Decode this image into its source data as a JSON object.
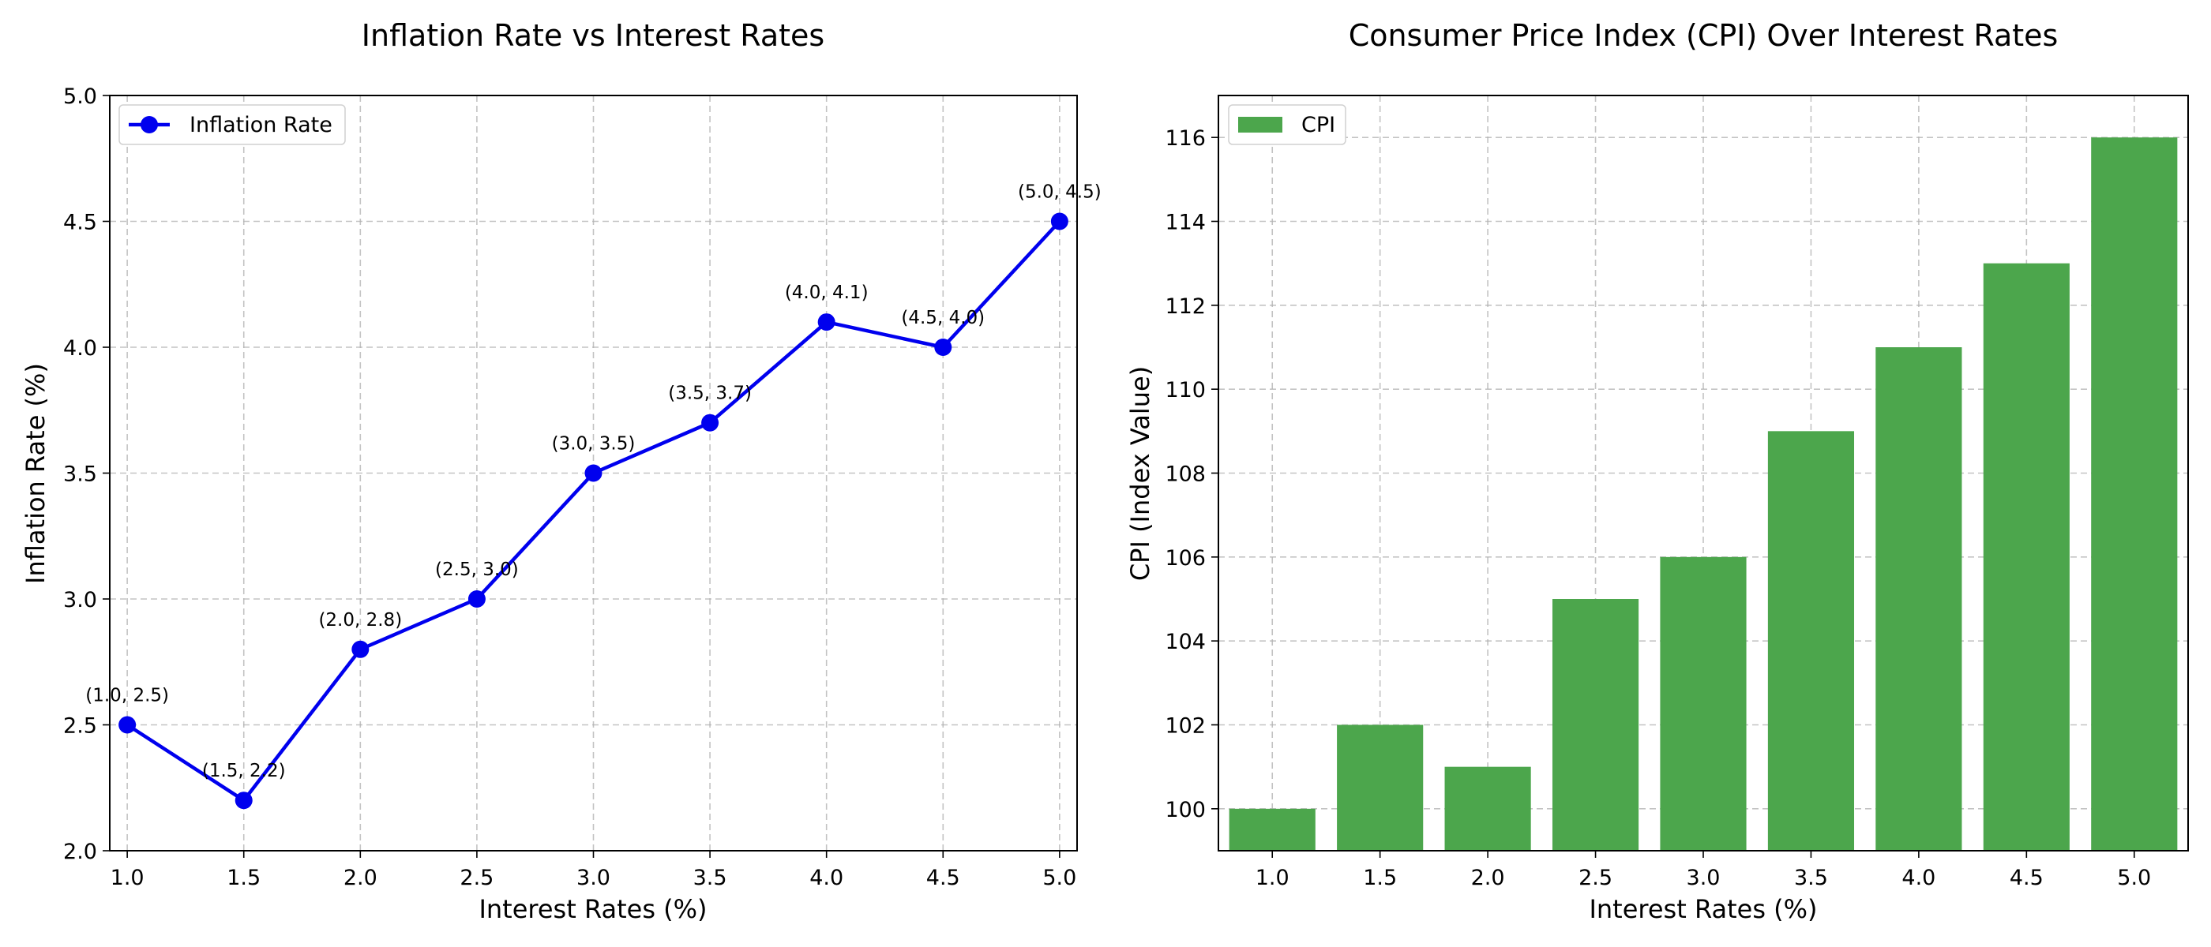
{
  "chart_data": [
    {
      "type": "line",
      "title": "Inflation Rate vs Interest Rates",
      "xlabel": "Interest Rates (%)",
      "ylabel": "Inflation Rate (%)",
      "xlim": [
        0.925,
        5.075
      ],
      "ylim": [
        2.0,
        5.0
      ],
      "xticks": [
        "1.0",
        "1.5",
        "2.0",
        "2.5",
        "3.0",
        "3.5",
        "4.0",
        "4.5",
        "5.0"
      ],
      "yticks": [
        "2.0",
        "2.5",
        "3.0",
        "3.5",
        "4.0",
        "4.5",
        "5.0"
      ],
      "grid": true,
      "legend_position": "top-left",
      "series": [
        {
          "name": "Inflation Rate",
          "color": "#0000ee",
          "marker": "circle",
          "x": [
            1.0,
            1.5,
            2.0,
            2.5,
            3.0,
            3.5,
            4.0,
            4.5,
            5.0
          ],
          "values": [
            2.5,
            2.2,
            2.8,
            3.0,
            3.5,
            3.7,
            4.1,
            4.0,
            4.5
          ]
        }
      ],
      "annotations": [
        "(1.0, 2.5)",
        "(1.5, 2.2)",
        "(2.0, 2.8)",
        "(2.5, 3.0)",
        "(3.0, 3.5)",
        "(3.5, 3.7)",
        "(4.0, 4.1)",
        "(4.5, 4.0)",
        "(5.0, 4.5)"
      ]
    },
    {
      "type": "bar",
      "title": "Consumer Price Index (CPI) Over Interest Rates",
      "xlabel": "Interest Rates (%)",
      "ylabel": "CPI (Index Value)",
      "categories": [
        "1.0",
        "1.5",
        "2.0",
        "2.5",
        "3.0",
        "3.5",
        "4.0",
        "4.5",
        "5.0"
      ],
      "ylim": [
        99,
        117
      ],
      "yticks": [
        "100",
        "102",
        "104",
        "106",
        "108",
        "110",
        "112",
        "114",
        "116"
      ],
      "grid": true,
      "legend_position": "top-left",
      "series": [
        {
          "name": "CPI",
          "color": "#4ca64c",
          "values": [
            100,
            102,
            101,
            105,
            106,
            109,
            111,
            113,
            116
          ]
        }
      ]
    }
  ]
}
